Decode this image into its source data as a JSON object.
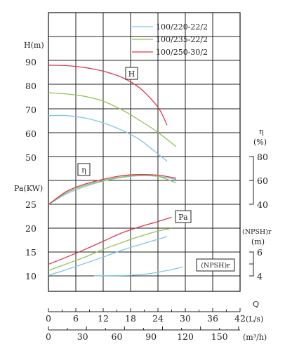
{
  "chart_data": {
    "type": "line",
    "title": "",
    "axes": {
      "H": {
        "label": "H(m)",
        "ticks": [
          90,
          80,
          70,
          60,
          50
        ]
      },
      "Pa": {
        "label": "Pa(KW)",
        "ticks": [
          25,
          20,
          15,
          10
        ]
      },
      "eta": {
        "label_symbol": "η",
        "label_unit": "(%)",
        "ticks": [
          80,
          60,
          40
        ]
      },
      "npsh": {
        "label": "(NPSH)r",
        "unit": "(m)",
        "ticks": [
          6,
          4
        ]
      },
      "q_ls": {
        "label": "Q",
        "unit": "(L/s)",
        "ticks": [
          0,
          6,
          12,
          18,
          24,
          30,
          36,
          42
        ]
      },
      "q_m3h": {
        "label": "(m³/h)",
        "ticks": [
          0,
          30,
          60,
          90,
          120,
          150
        ]
      }
    },
    "legend": {
      "position": "top-right",
      "entries": [
        {
          "name": "100/220-22/2",
          "color": "#7fc6e4"
        },
        {
          "name": "100/235-22/2",
          "color": "#92c453"
        },
        {
          "name": "100/250-30/2",
          "color": "#d93a4a"
        }
      ]
    },
    "curve_labels": {
      "H": "H",
      "eta": "η",
      "Pa": "Pa",
      "npsh": "(NPSH)r"
    },
    "series": [
      {
        "name": "100/220-22/2",
        "color": "#7fc6e4",
        "H": {
          "x": [
            0,
            4,
            8,
            12,
            16,
            20,
            24,
            26
          ],
          "y": [
            67,
            67,
            66,
            64,
            61,
            57,
            51,
            48
          ]
        },
        "eta": {
          "x": [
            0,
            4,
            8,
            12,
            16,
            20,
            24,
            28
          ],
          "y": [
            40,
            49,
            55,
            59.5,
            62.5,
            64,
            63.5,
            61
          ]
        },
        "Pa": {
          "x": [
            0,
            4,
            8,
            12,
            16,
            20,
            24,
            26
          ],
          "y": [
            10.2,
            11.4,
            12.7,
            14,
            15.4,
            16.6,
            17.7,
            18.3
          ]
        },
        "npsh": {
          "x": [
            10,
            14,
            18,
            22,
            26,
            29.5
          ],
          "y": [
            4.01,
            4.02,
            4.05,
            4.18,
            4.45,
            4.75
          ]
        }
      },
      {
        "name": "100/235-22/2",
        "color": "#92c453",
        "H": {
          "x": [
            0,
            4,
            8,
            12,
            16,
            20,
            24,
            28
          ],
          "y": [
            76.5,
            76,
            75,
            73,
            69.5,
            65,
            60,
            54
          ]
        },
        "eta": {
          "x": [
            0,
            4,
            8,
            12,
            16,
            20,
            24,
            28
          ],
          "y": [
            40,
            50,
            56,
            60,
            63,
            64.5,
            63.5,
            58
          ]
        },
        "Pa": {
          "x": [
            0,
            4,
            8,
            12,
            16,
            20,
            24,
            27
          ],
          "y": [
            11.2,
            12.6,
            14,
            15.6,
            17,
            18.3,
            19.4,
            20
          ]
        }
      },
      {
        "name": "100/250-30/2",
        "color": "#d93a4a",
        "H": {
          "x": [
            0,
            4,
            8,
            12,
            16,
            20,
            24,
            26
          ],
          "y": [
            88,
            87.8,
            87,
            85.5,
            83,
            78.5,
            70.5,
            63
          ]
        },
        "eta": {
          "x": [
            0,
            4,
            8,
            12,
            16,
            20,
            24,
            28
          ],
          "y": [
            40,
            51,
            57,
            61,
            64,
            65,
            64.5,
            62
          ]
        },
        "Pa": {
          "x": [
            0,
            4,
            8,
            12,
            16,
            20,
            24,
            27
          ],
          "y": [
            12.5,
            14,
            15.6,
            17.3,
            19,
            20.3,
            21.4,
            22.3
          ]
        }
      }
    ]
  }
}
